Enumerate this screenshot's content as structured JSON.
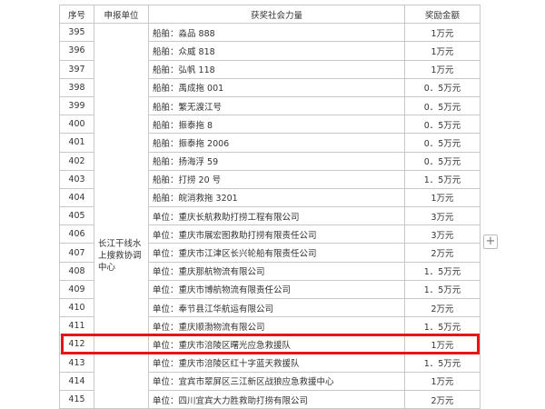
{
  "table": {
    "headers": [
      "序号",
      "申报单位",
      "获奖社会力量",
      "奖励金额"
    ],
    "unit": "长江干线水上搜救协调中心",
    "rows": [
      [
        "395",
        "船舶：淼品 888",
        "1万元"
      ],
      [
        "396",
        "船舶：众威 818",
        "1万元"
      ],
      [
        "397",
        "船舶：弘帆 118",
        "1万元"
      ],
      [
        "398",
        "船舶：禹成拖 001",
        "0．5万元"
      ],
      [
        "399",
        "船舶：繁无渡江号",
        "0．5万元"
      ],
      [
        "400",
        "船舶：振泰拖 8",
        "0．5万元"
      ],
      [
        "401",
        "船舶：振泰拖 2006",
        "0．5万元"
      ],
      [
        "402",
        "船舶：扬海浮 59",
        "0．5万元"
      ],
      [
        "403",
        "船舶：打捞 20 号",
        "1．5万元"
      ],
      [
        "404",
        "船舶：皖消救拖 3201",
        "1万元"
      ],
      [
        "405",
        "单位：重庆长航救助打捞工程有限公司",
        "3万元"
      ],
      [
        "406",
        "单位：重庆市展宏图救助打捞有限责任公司",
        "3万元"
      ],
      [
        "407",
        "单位：重庆市江津区长兴轮船有限责任公司",
        "2万元"
      ],
      [
        "408",
        "单位：重庆那航物流有限公司",
        "1．5万元"
      ],
      [
        "409",
        "单位：重庆市博航物流有限责任公司",
        "1．5万元"
      ],
      [
        "410",
        "单位：奉节县江华航运有限公司",
        "2万元"
      ],
      [
        "411",
        "单位：重庆顺渤物流有限公司",
        "1．5万元"
      ],
      [
        "412",
        "单位：重庆市涪陵区曙光应急救援队",
        "1万元"
      ],
      [
        "413",
        "单位：重庆市涪陵区红十字蓝天救援队",
        "1．5万元"
      ],
      [
        "414",
        "单位：宜宾市翠屏区三江新区战狼应急救援中心",
        "1万元"
      ],
      [
        "415",
        "单位：四川宜宾大力胜救助打捞有限公司",
        "2万元"
      ]
    ]
  }
}
